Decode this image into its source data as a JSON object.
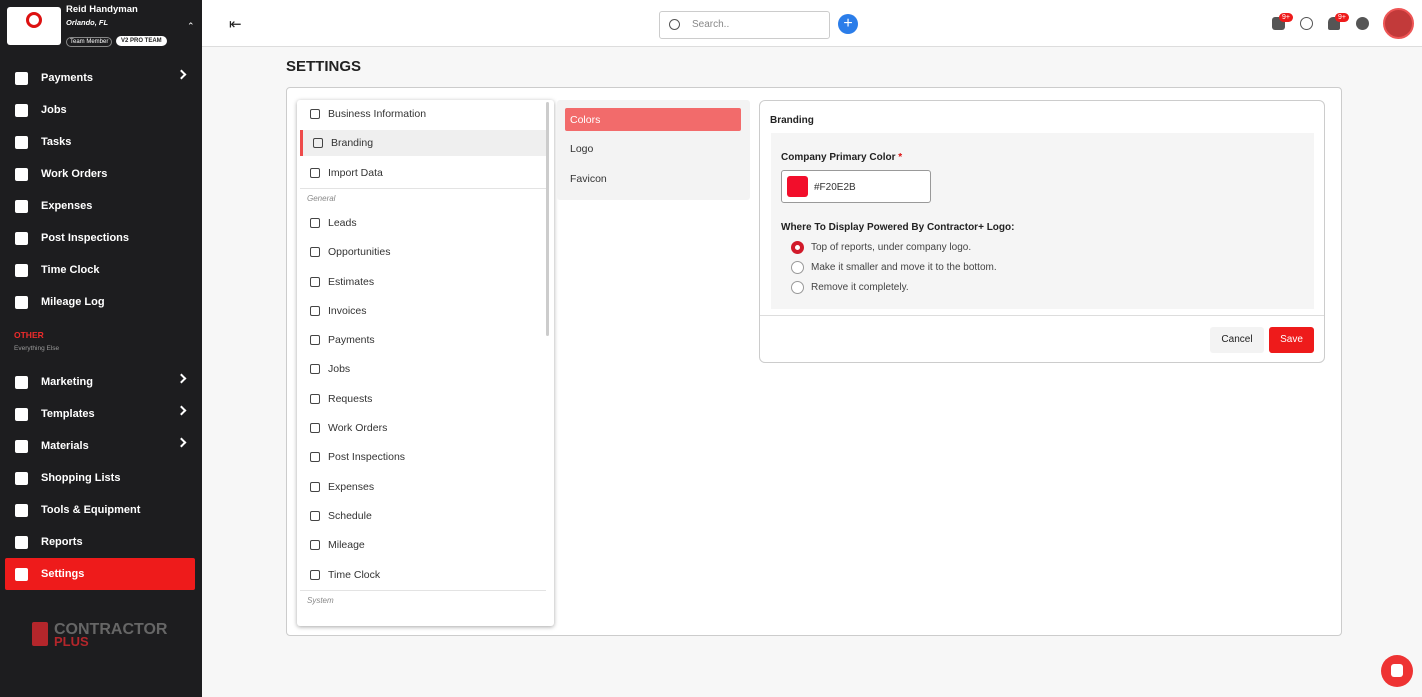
{
  "sidebar": {
    "company": "Reid Handyman",
    "location": "Orlando, FL",
    "badges": [
      "Team Member",
      "V2 PRO TEAM"
    ],
    "items": [
      {
        "label": "Payments",
        "submenu": true
      },
      {
        "label": "Jobs",
        "submenu": false
      },
      {
        "label": "Tasks",
        "submenu": false
      },
      {
        "label": "Work Orders",
        "submenu": false
      },
      {
        "label": "Expenses",
        "submenu": false
      },
      {
        "label": "Post Inspections",
        "submenu": false
      },
      {
        "label": "Time Clock",
        "submenu": false
      },
      {
        "label": "Mileage Log",
        "submenu": false
      }
    ],
    "section_title": "OTHER",
    "section_subtitle": "Everything Else",
    "other_items": [
      {
        "label": "Marketing",
        "submenu": true
      },
      {
        "label": "Templates",
        "submenu": true
      },
      {
        "label": "Materials",
        "submenu": true
      },
      {
        "label": "Shopping Lists",
        "submenu": false
      },
      {
        "label": "Tools & Equipment",
        "submenu": false
      },
      {
        "label": "Reports",
        "submenu": false
      },
      {
        "label": "Settings",
        "submenu": false
      }
    ],
    "active": "Settings",
    "brand": [
      "CONTRACTOR",
      "PLUS"
    ]
  },
  "topbar": {
    "search_placeholder": "Search..",
    "notification_badges": [
      "9+",
      "9+"
    ]
  },
  "page_title": "SETTINGS",
  "settings_menu": {
    "top_items": [
      "Business Information",
      "Branding",
      "Import Data"
    ],
    "general_title": "General",
    "general_items": [
      "Leads",
      "Opportunities",
      "Estimates",
      "Invoices",
      "Payments",
      "Jobs",
      "Requests",
      "Work Orders",
      "Post Inspections",
      "Expenses",
      "Schedule",
      "Mileage",
      "Time Clock"
    ],
    "system_title": "System",
    "active": "Branding"
  },
  "tabs": {
    "items": [
      "Colors",
      "Logo",
      "Favicon"
    ],
    "active": "Colors"
  },
  "panel": {
    "title": "Branding",
    "color_label": "Company Primary Color",
    "required_mark": "*",
    "color_value": "#F20E2B",
    "display_label": "Where To Display Powered By Contractor+ Logo:",
    "options": [
      "Top of reports, under company logo.",
      "Make it smaller and move it to the bottom.",
      "Remove it completely."
    ],
    "selected": 0,
    "cancel": "Cancel",
    "save": "Save"
  }
}
